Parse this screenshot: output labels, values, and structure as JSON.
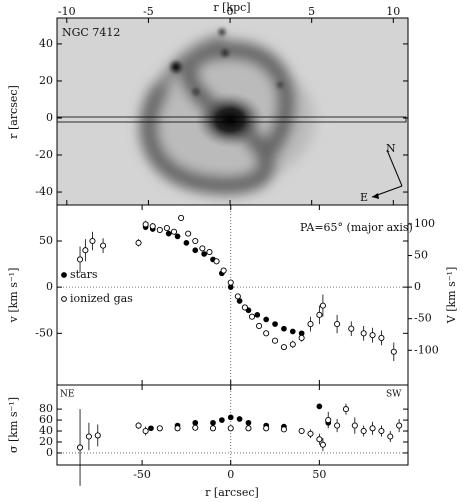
{
  "chart_data": [
    {
      "type": "image",
      "title": "NGC 7412",
      "xlabel": "r [kpc]",
      "ylabel": "r [arcsec]",
      "xlim": [
        -10.6,
        10.9
      ],
      "xticks": [
        -10,
        -5,
        0,
        5,
        10
      ],
      "ylim": [
        -47,
        54
      ],
      "yticks": [
        40,
        20,
        0,
        -20,
        -40
      ],
      "annotations": [
        "N",
        "E"
      ]
    },
    {
      "type": "scatter",
      "annotation": "PA=65° (major axis)",
      "ylabel": "v [km s⁻¹]",
      "y2label": "V [km s⁻¹]",
      "xlim": [
        -98,
        100
      ],
      "xticks": [
        -50,
        0,
        50
      ],
      "ylim": [
        -106,
        89
      ],
      "yticks": [
        50,
        0,
        -50
      ],
      "y2lim": [
        -155,
        130
      ],
      "y2ticks": [
        100,
        50,
        0,
        -50,
        -100
      ],
      "series": [
        {
          "name": "stars",
          "marker": "filled",
          "color": "#000000",
          "x": [
            -48,
            -44,
            -40,
            -35,
            -30,
            -25,
            -20,
            -15,
            -10,
            -5,
            0,
            5,
            10,
            15,
            20,
            25,
            30,
            35,
            40
          ],
          "values": [
            65,
            63,
            62,
            58,
            55,
            48,
            40,
            36,
            30,
            15,
            0,
            -15,
            -25,
            -30,
            -35,
            -40,
            -45,
            -48,
            -50
          ]
        },
        {
          "name": "ionized gas",
          "marker": "open",
          "color": "#000000",
          "x": [
            -85,
            -82,
            -78,
            -72,
            -52,
            -48,
            -44,
            -40,
            -36,
            -32,
            -28,
            -24,
            -20,
            -16,
            -12,
            -8,
            -4,
            0,
            4,
            8,
            12,
            16,
            20,
            25,
            30,
            35,
            40,
            45,
            50,
            52,
            60,
            68,
            75,
            80,
            85,
            92
          ],
          "values": [
            30,
            40,
            50,
            45,
            48,
            68,
            66,
            62,
            64,
            60,
            75,
            58,
            50,
            42,
            38,
            28,
            18,
            5,
            -10,
            -22,
            -32,
            -42,
            -50,
            -58,
            -65,
            -62,
            -55,
            -40,
            -30,
            -20,
            -40,
            -45,
            -50,
            -52,
            -55,
            -70
          ],
          "errors": [
            14,
            12,
            10,
            8,
            4,
            4,
            3,
            3,
            3,
            3,
            3,
            3,
            3,
            3,
            3,
            3,
            3,
            3,
            3,
            3,
            3,
            3,
            3,
            3,
            3,
            4,
            4,
            8,
            10,
            12,
            10,
            8,
            8,
            8,
            8,
            10
          ]
        }
      ]
    },
    {
      "type": "scatter",
      "xlabel": "r [arcsec]",
      "ylabel": "σ [km s⁻¹]",
      "annotations": [
        "NE",
        "SW"
      ],
      "xlim": [
        -98,
        100
      ],
      "xticks": [
        -50,
        0,
        50
      ],
      "ylim": [
        -22,
        124
      ],
      "yticks": [
        0,
        20,
        40,
        60,
        80
      ],
      "series": [
        {
          "name": "stars",
          "marker": "filled",
          "color": "#000000",
          "x": [
            -45,
            -30,
            -20,
            -10,
            -5,
            0,
            5,
            10,
            20,
            30,
            50,
            55
          ],
          "values": [
            45,
            50,
            55,
            55,
            60,
            65,
            62,
            55,
            50,
            48,
            85,
            55
          ]
        },
        {
          "name": "ionized gas",
          "marker": "open",
          "color": "#000000",
          "x": [
            -85,
            -80,
            -75,
            -52,
            -48,
            -40,
            -30,
            -20,
            -10,
            0,
            10,
            20,
            30,
            40,
            45,
            50,
            52,
            55,
            60,
            65,
            70,
            75,
            80,
            85,
            90,
            95
          ],
          "values": [
            10,
            30,
            32,
            50,
            40,
            45,
            45,
            46,
            45,
            45,
            45,
            45,
            43,
            40,
            35,
            25,
            15,
            60,
            50,
            80,
            50,
            40,
            45,
            40,
            30,
            50
          ],
          "errors": [
            70,
            25,
            20,
            6,
            8,
            4,
            3,
            3,
            3,
            3,
            3,
            3,
            4,
            5,
            8,
            10,
            12,
            15,
            12,
            10,
            15,
            10,
            12,
            10,
            10,
            12
          ]
        }
      ]
    }
  ]
}
